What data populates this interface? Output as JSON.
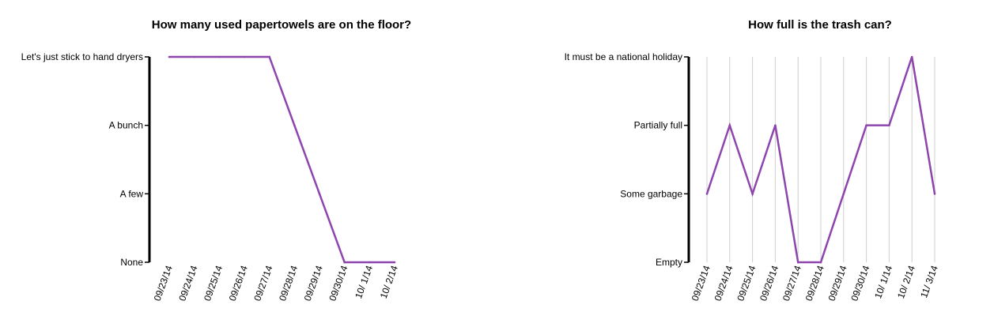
{
  "chart_data": [
    {
      "type": "line",
      "title": "How many used papertowels are on the floor?",
      "y_levels": [
        "None",
        "A few",
        "A bunch",
        "Let's just stick to hand dryers"
      ],
      "categories": [
        "09/23/14",
        "09/24/14",
        "09/25/14",
        "09/26/14",
        "09/27/14",
        "09/28/14",
        "09/29/14",
        "09/30/14",
        "10/ 1/14",
        "10/ 2/14"
      ],
      "series": [
        {
          "values": [
            3,
            3,
            3,
            3,
            3,
            2,
            1,
            0,
            0,
            0
          ],
          "color": "#8e44ad"
        }
      ],
      "grid": false
    },
    {
      "type": "line",
      "title": "How full is the trash can?",
      "y_levels": [
        "Empty",
        "Some garbage",
        "Partially full",
        "It must be a national holiday"
      ],
      "categories": [
        "09/23/14",
        "09/24/14",
        "09/25/14",
        "09/26/14",
        "09/27/14",
        "09/28/14",
        "09/29/14",
        "09/30/14",
        "10/ 1/14",
        "10/ 2/14",
        "11/ 3/14"
      ],
      "series": [
        {
          "values": [
            1,
            2,
            1,
            2,
            0,
            0,
            1,
            2,
            2,
            3,
            1
          ],
          "color": "#8e44ad"
        }
      ],
      "grid": true
    }
  ]
}
